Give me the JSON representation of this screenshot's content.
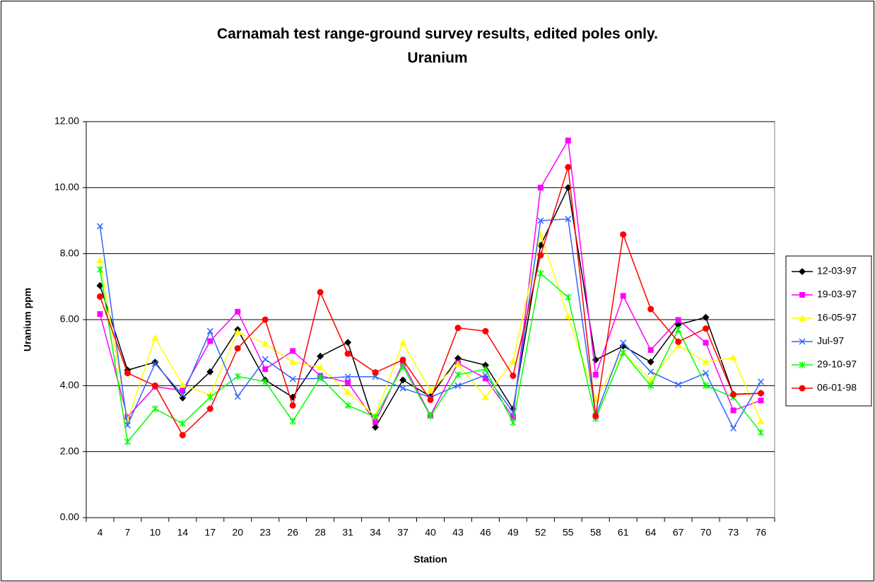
{
  "chart_data": {
    "type": "line",
    "title": [
      "Carnamah test range-ground survey results, edited poles only.",
      "Uranium"
    ],
    "x_label": "Station",
    "y_label": "Uranium ppm",
    "categories": [
      "4",
      "7",
      "10",
      "14",
      "17",
      "20",
      "23",
      "26",
      "28",
      "31",
      "34",
      "37",
      "40",
      "43",
      "46",
      "49",
      "52",
      "55",
      "58",
      "61",
      "64",
      "67",
      "70",
      "73",
      "76"
    ],
    "ylim": [
      0,
      12
    ],
    "yticks": [
      {
        "value": 0,
        "label": "0.00"
      },
      {
        "value": 2,
        "label": "2.00"
      },
      {
        "value": 4,
        "label": "4.00"
      },
      {
        "value": 6,
        "label": "6.00"
      },
      {
        "value": 8,
        "label": "8.00"
      },
      {
        "value": 10,
        "label": "10.00"
      },
      {
        "value": 12,
        "label": "12.00"
      }
    ],
    "grid": true,
    "legend": "right",
    "series": [
      {
        "name": "12-03-97",
        "color": "#000000",
        "marker": "diamond",
        "values": [
          7.03,
          4.47,
          4.71,
          3.63,
          4.42,
          5.7,
          4.17,
          3.65,
          4.89,
          5.31,
          2.74,
          4.17,
          3.67,
          4.83,
          4.62,
          3.29,
          8.25,
          10.0,
          4.78,
          5.2,
          4.72,
          5.85,
          6.07,
          3.74,
          3.77
        ]
      },
      {
        "name": "19-03-97",
        "color": "#ff00ff",
        "marker": "square",
        "values": [
          6.17,
          3.05,
          3.97,
          3.85,
          5.35,
          6.24,
          4.5,
          5.05,
          4.3,
          4.1,
          2.9,
          4.68,
          3.1,
          4.68,
          4.22,
          3.05,
          10.0,
          11.43,
          4.33,
          6.72,
          5.08,
          5.99,
          5.3,
          3.25,
          3.55
        ]
      },
      {
        "name": "16-05-97",
        "color": "#ffff00",
        "marker": "triangle",
        "values": [
          7.8,
          2.95,
          5.45,
          4.02,
          3.72,
          5.62,
          5.27,
          4.72,
          4.56,
          3.8,
          3.08,
          5.3,
          3.85,
          4.65,
          3.65,
          4.73,
          8.57,
          6.1,
          3.6,
          5.0,
          4.18,
          5.22,
          4.72,
          4.85,
          2.92
        ]
      },
      {
        "name": "Jul-97",
        "color": "#3366ff",
        "marker": "x",
        "values": [
          8.83,
          2.8,
          4.67,
          3.72,
          5.65,
          3.67,
          4.8,
          4.2,
          4.22,
          4.27,
          4.27,
          3.92,
          3.65,
          4.0,
          4.32,
          3.2,
          9.0,
          9.05,
          3.08,
          5.3,
          4.42,
          4.03,
          4.38,
          2.71,
          4.12
        ]
      },
      {
        "name": "29-10-97",
        "color": "#00ff00",
        "marker": "star",
        "values": [
          7.52,
          2.3,
          3.3,
          2.85,
          3.65,
          4.28,
          4.12,
          2.92,
          4.25,
          3.4,
          3.05,
          4.58,
          3.08,
          4.33,
          4.5,
          2.88,
          7.4,
          6.68,
          3.0,
          5.0,
          4.0,
          5.7,
          4.0,
          3.65,
          2.58
        ]
      },
      {
        "name": "06-01-98",
        "color": "#ff0000",
        "marker": "circle",
        "values": [
          6.7,
          4.38,
          4.0,
          2.5,
          3.3,
          5.13,
          6.0,
          3.4,
          6.83,
          4.97,
          4.4,
          4.78,
          3.57,
          5.75,
          5.65,
          4.3,
          7.95,
          10.62,
          3.08,
          8.58,
          6.32,
          5.33,
          5.73,
          3.73,
          3.77
        ]
      }
    ]
  }
}
